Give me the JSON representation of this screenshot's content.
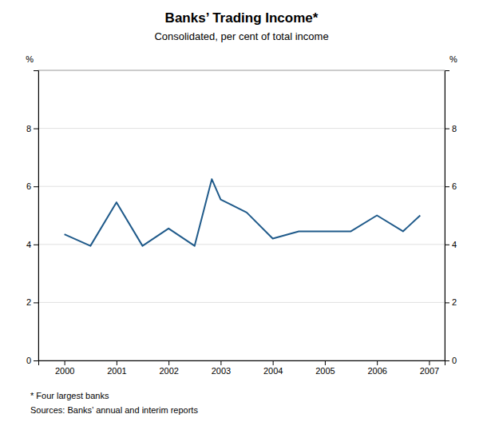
{
  "chart_data": {
    "type": "line",
    "title": "Banks’ Trading Income*",
    "subtitle": "Consolidated, per cent of total income",
    "y_label": "%",
    "y2_label": "%",
    "footnotes": [
      "*  Four largest banks",
      "Sources: Banks’ annual and interim reports"
    ],
    "x": [
      2000.0,
      2000.5,
      2001.0,
      2001.5,
      2002.0,
      2002.5,
      2002.83,
      2003.0,
      2003.5,
      2004.0,
      2004.5,
      2005.0,
      2005.5,
      2006.0,
      2006.5,
      2006.83
    ],
    "values": [
      4.35,
      3.95,
      5.45,
      3.95,
      4.55,
      3.95,
      6.25,
      5.55,
      5.1,
      4.2,
      4.45,
      4.45,
      4.45,
      5.0,
      4.45,
      5.0
    ],
    "color": "#1f5a8a",
    "xlim": [
      1999.5,
      2007.3
    ],
    "xticks": [
      2000,
      2001,
      2002,
      2003,
      2004,
      2005,
      2006,
      2007
    ],
    "ylim": [
      0,
      10
    ],
    "yticks": [
      0,
      2,
      4,
      6,
      8
    ],
    "y2lim": [
      0,
      10
    ],
    "y2ticks": [
      0,
      2,
      4,
      6,
      8
    ],
    "grid": true
  }
}
